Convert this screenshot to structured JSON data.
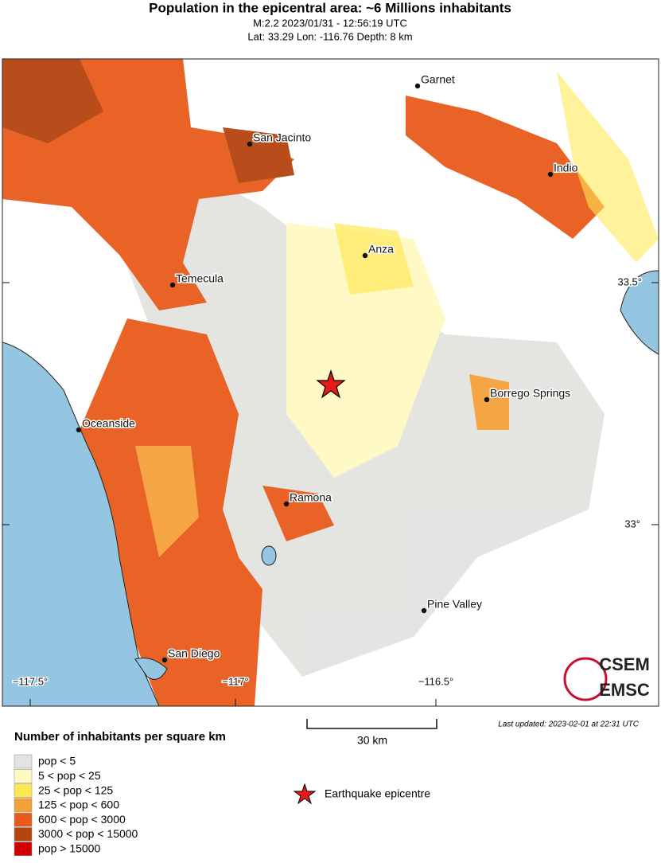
{
  "header": {
    "title": "Population in the epicentral area: ~6 Millions inhabitants",
    "subtitle": "M:2.2 2023/01/31 - 12:56:19 UTC",
    "location": "Lat: 33.29 Lon: -116.76 Depth: 8 km"
  },
  "map": {
    "cities": [
      "Garnet",
      "San Jacinto",
      "Indio",
      "Anza",
      "Temecula",
      "Borrego Springs",
      "Oceanside",
      "Ramona",
      "Pine Valley",
      "San Diego"
    ],
    "lon_labels": [
      "−117.5°",
      "−117°",
      "−116.5°"
    ],
    "lat_labels": [
      "33.5°",
      "33°"
    ]
  },
  "logo": {
    "top": "CSEM",
    "bottom": "EMSC"
  },
  "scale": {
    "label": "30 km"
  },
  "last_updated": "Last updated: 2023-02-01 at 22:31 UTC",
  "legend": {
    "title": "Number of inhabitants per square km",
    "items": [
      {
        "label": "pop < 5",
        "color": "#e3e3e0"
      },
      {
        "label": "5 < pop < 25",
        "color": "#fff9c2"
      },
      {
        "label": "25 < pop < 125",
        "color": "#fde84f"
      },
      {
        "label": "125 < pop < 600",
        "color": "#f5a13a"
      },
      {
        "label": "600 < pop < 3000",
        "color": "#e95b1b"
      },
      {
        "label": "3000 < pop < 15000",
        "color": "#b5440f"
      },
      {
        "label": "pop > 15000",
        "color": "#d10000"
      }
    ],
    "epicentre": "Earthquake epicentre"
  }
}
